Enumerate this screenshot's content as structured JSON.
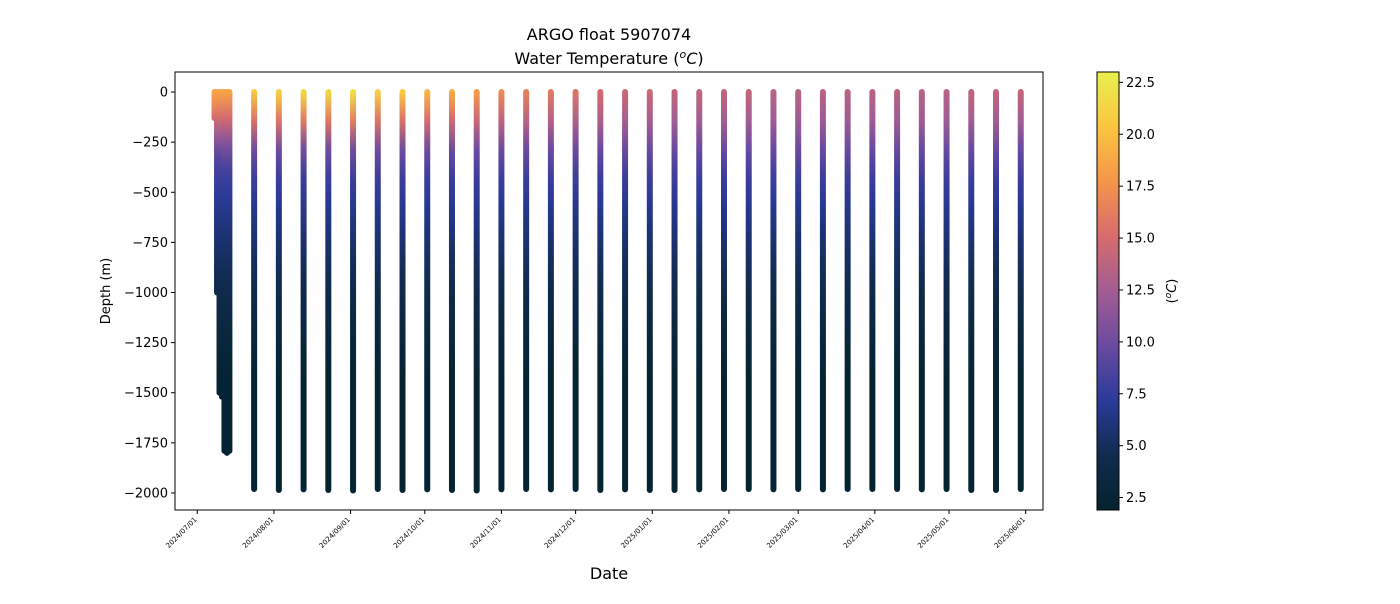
{
  "chart_data": {
    "type": "scatter",
    "title_line1": "ARGO float 5907074",
    "title_line2_prefix": "Water Temperature (",
    "title_unit_sup": "o",
    "title_unit_letter": "C",
    "title_line2_suffix": ")",
    "xlabel": "Date",
    "ylabel": "Depth (m)",
    "colorbar_label_prefix": "(",
    "colorbar_label_sup": "o",
    "colorbar_label_letter": "C",
    "colorbar_label_suffix": ")",
    "colormap": "thermal",
    "colormap_stops": [
      "#04232f",
      "#112b4f",
      "#2b3a9a",
      "#6a4aa0",
      "#a25d93",
      "#d76b6e",
      "#f5954a",
      "#fbc53f",
      "#e9f04e"
    ],
    "xlim": [
      "2024-06-22",
      "2025-06-08"
    ],
    "ylim": [
      -2085,
      100
    ],
    "clim": [
      1.9,
      23.0
    ],
    "grid": false,
    "legend": "none",
    "x_ticks": [
      "2024-07-01",
      "2024-08-01",
      "2024-09-01",
      "2024-10-01",
      "2024-11-01",
      "2024-12-01",
      "2025-01-01",
      "2025-02-01",
      "2025-03-01",
      "2025-04-01",
      "2025-05-01",
      "2025-06-01"
    ],
    "x_tick_labels": [
      "2024/07/01",
      "2024/08/01",
      "2024/09/01",
      "2024/10/01",
      "2024/11/01",
      "2024/12/01",
      "2025/01/01",
      "2025/02/01",
      "2025/03/01",
      "2025/04/01",
      "2025/05/01",
      "2025/06/01"
    ],
    "y_ticks": [
      0,
      -250,
      -500,
      -750,
      -1000,
      -1250,
      -1500,
      -1750,
      -2000
    ],
    "y_tick_labels": [
      "0",
      "−250",
      "−500",
      "−750",
      "−1000",
      "−1250",
      "−1500",
      "−1750",
      "−2000"
    ],
    "colorbar_ticks": [
      2.5,
      5.0,
      7.5,
      10.0,
      12.5,
      15.0,
      17.5,
      20.0,
      22.5
    ],
    "colorbar_tick_labels": [
      "2.5",
      "5.0",
      "7.5",
      "10.0",
      "12.5",
      "15.0",
      "17.5",
      "20.0",
      "22.5"
    ],
    "profiles": [
      {
        "date": "2024-07-08",
        "max_depth": 130,
        "surface_temp": 18.5
      },
      {
        "date": "2024-07-09",
        "max_depth": 1000,
        "surface_temp": 18.5
      },
      {
        "date": "2024-07-10",
        "max_depth": 1500,
        "surface_temp": 18.5
      },
      {
        "date": "2024-07-11",
        "max_depth": 1520,
        "surface_temp": 18.5
      },
      {
        "date": "2024-07-12",
        "max_depth": 1790,
        "surface_temp": 18.5
      },
      {
        "date": "2024-07-13",
        "max_depth": 1800,
        "surface_temp": 18.5
      },
      {
        "date": "2024-07-14",
        "max_depth": 1790,
        "surface_temp": 18.5
      },
      {
        "date": "2024-07-24",
        "max_depth": 1980,
        "surface_temp": 20.5
      },
      {
        "date": "2024-08-03",
        "max_depth": 1985,
        "surface_temp": 21.0
      },
      {
        "date": "2024-08-13",
        "max_depth": 1982,
        "surface_temp": 21.5
      },
      {
        "date": "2024-08-23",
        "max_depth": 1985,
        "surface_temp": 21.5
      },
      {
        "date": "2024-09-02",
        "max_depth": 1988,
        "surface_temp": 22.0
      },
      {
        "date": "2024-09-12",
        "max_depth": 1980,
        "surface_temp": 21.0
      },
      {
        "date": "2024-09-22",
        "max_depth": 1985,
        "surface_temp": 20.5
      },
      {
        "date": "2024-10-02",
        "max_depth": 1982,
        "surface_temp": 19.5
      },
      {
        "date": "2024-10-12",
        "max_depth": 1985,
        "surface_temp": 19.0
      },
      {
        "date": "2024-10-22",
        "max_depth": 1988,
        "surface_temp": 18.0
      },
      {
        "date": "2024-11-01",
        "max_depth": 1982,
        "surface_temp": 17.0
      },
      {
        "date": "2024-11-11",
        "max_depth": 1980,
        "surface_temp": 16.5
      },
      {
        "date": "2024-11-21",
        "max_depth": 1982,
        "surface_temp": 16.0
      },
      {
        "date": "2024-12-01",
        "max_depth": 1980,
        "surface_temp": 15.5
      },
      {
        "date": "2024-12-11",
        "max_depth": 1985,
        "surface_temp": 15.0
      },
      {
        "date": "2024-12-21",
        "max_depth": 1982,
        "surface_temp": 14.5
      },
      {
        "date": "2024-12-31",
        "max_depth": 1985,
        "surface_temp": 14.5
      },
      {
        "date": "2025-01-10",
        "max_depth": 1985,
        "surface_temp": 14.0
      },
      {
        "date": "2025-01-20",
        "max_depth": 1982,
        "surface_temp": 14.0
      },
      {
        "date": "2025-01-30",
        "max_depth": 1980,
        "surface_temp": 14.0
      },
      {
        "date": "2025-02-09",
        "max_depth": 1980,
        "surface_temp": 14.0
      },
      {
        "date": "2025-02-19",
        "max_depth": 1982,
        "surface_temp": 13.5
      },
      {
        "date": "2025-03-01",
        "max_depth": 1980,
        "surface_temp": 13.5
      },
      {
        "date": "2025-03-11",
        "max_depth": 1982,
        "surface_temp": 13.5
      },
      {
        "date": "2025-03-21",
        "max_depth": 1980,
        "surface_temp": 13.5
      },
      {
        "date": "2025-03-31",
        "max_depth": 1980,
        "surface_temp": 13.5
      },
      {
        "date": "2025-04-10",
        "max_depth": 1980,
        "surface_temp": 13.5
      },
      {
        "date": "2025-04-20",
        "max_depth": 1982,
        "surface_temp": 13.5
      },
      {
        "date": "2025-04-30",
        "max_depth": 1980,
        "surface_temp": 13.5
      },
      {
        "date": "2025-05-10",
        "max_depth": 1985,
        "surface_temp": 14.0
      },
      {
        "date": "2025-05-20",
        "max_depth": 1985,
        "surface_temp": 14.0
      },
      {
        "date": "2025-05-30",
        "max_depth": 1980,
        "surface_temp": 14.0
      }
    ]
  }
}
